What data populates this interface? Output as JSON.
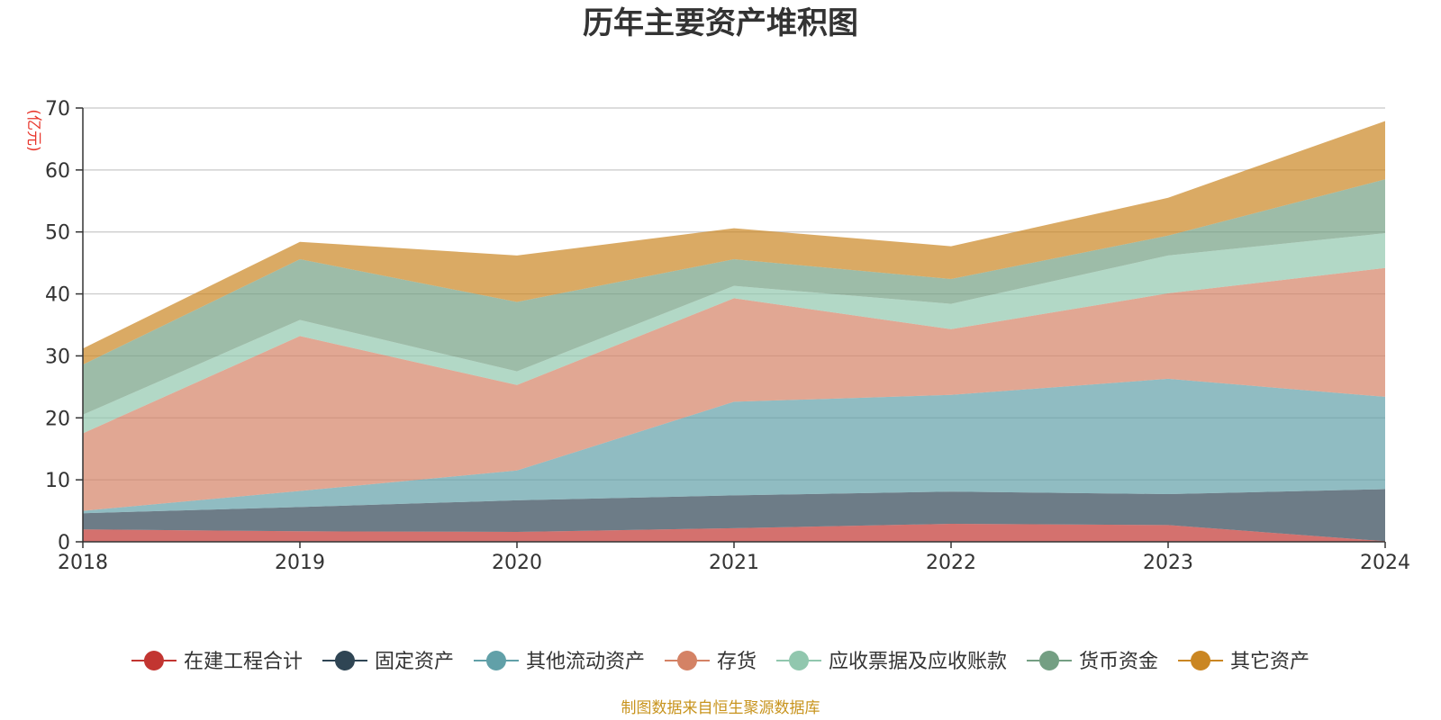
{
  "chart_data": {
    "type": "area",
    "stacked": true,
    "title": "历年主要资产堆积图",
    "ylabel": "(亿元)",
    "xlabel": "",
    "x": [
      "2018",
      "2019",
      "2020",
      "2021",
      "2022",
      "2023",
      "2024"
    ],
    "ylim": [
      0,
      70
    ],
    "yticks": [
      0,
      10,
      20,
      30,
      40,
      50,
      60,
      70
    ],
    "grid": true,
    "legend_position": "bottom",
    "series": [
      {
        "name": "在建工程合计",
        "color": "#c23531",
        "values": [
          2.0,
          1.7,
          1.6,
          2.2,
          2.9,
          2.7,
          0.1
        ]
      },
      {
        "name": "固定资产",
        "color": "#2f4554",
        "values": [
          2.6,
          3.9,
          5.1,
          5.3,
          5.2,
          5.0,
          8.4
        ]
      },
      {
        "name": "其他流动资产",
        "color": "#61a0a8",
        "values": [
          0.4,
          2.6,
          4.8,
          15.1,
          15.6,
          18.6,
          14.9
        ]
      },
      {
        "name": "存货",
        "color": "#d48265",
        "values": [
          12.5,
          25.0,
          13.8,
          16.7,
          10.6,
          13.8,
          20.8
        ]
      },
      {
        "name": "应收票据及应收账款",
        "color": "#91c7ae",
        "values": [
          3.0,
          2.6,
          2.2,
          2.0,
          4.1,
          6.1,
          5.6
        ]
      },
      {
        "name": "货币资金",
        "color": "#749f83",
        "values": [
          8.1,
          9.8,
          11.2,
          4.3,
          4.0,
          3.2,
          8.7
        ]
      },
      {
        "name": "其它资产",
        "color": "#ca8622",
        "values": [
          2.6,
          2.8,
          7.5,
          5.0,
          5.3,
          6.1,
          9.4
        ]
      }
    ]
  },
  "footer": {
    "source": "制图数据来自恒生聚源数据库"
  }
}
